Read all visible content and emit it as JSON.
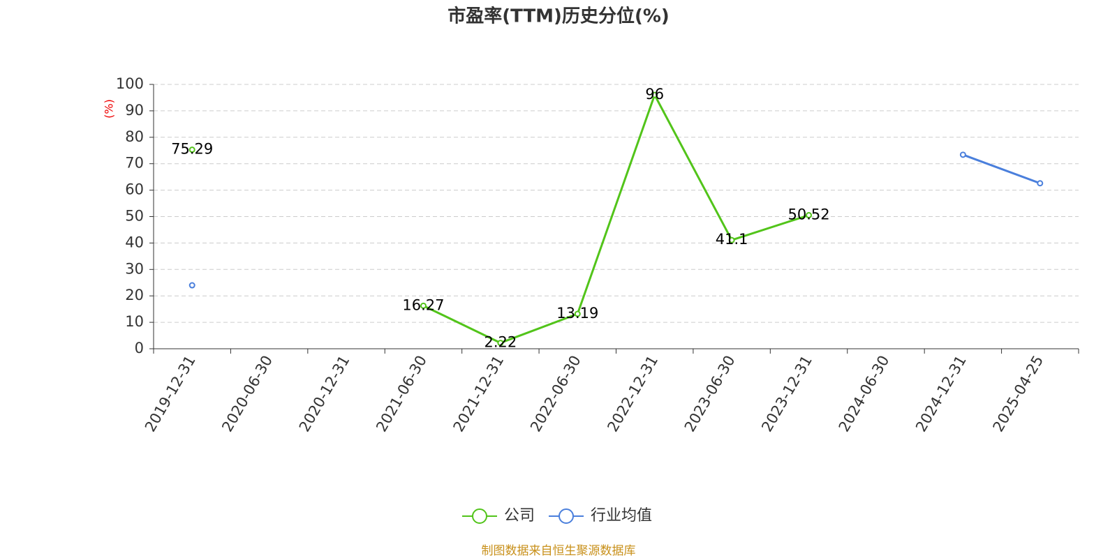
{
  "chart_data": {
    "type": "line",
    "title": "市盈率(TTM)历史分位(%)",
    "y_label": "(%)",
    "source": "制图数据来自恒生聚源数据库",
    "categories": [
      "2019-12-31",
      "2020-06-30",
      "2020-12-31",
      "2021-06-30",
      "2021-12-31",
      "2022-06-30",
      "2022-12-31",
      "2023-06-30",
      "2023-12-31",
      "2024-06-30",
      "2024-12-31",
      "2025-04-25"
    ],
    "series": [
      {
        "name": "公司",
        "color": "#52c41a",
        "values": [
          75.29,
          null,
          null,
          16.27,
          2.22,
          13.19,
          96,
          41.1,
          50.52,
          null,
          null,
          null
        ],
        "data_labels": true
      },
      {
        "name": "行业均值",
        "color": "#4a7fdc",
        "values": [
          24,
          null,
          null,
          null,
          null,
          null,
          null,
          null,
          null,
          null,
          73.4,
          62.6
        ],
        "data_labels": false
      }
    ],
    "ylim": [
      0,
      100
    ],
    "yticks": [
      0,
      10,
      20,
      30,
      40,
      50,
      60,
      70,
      80,
      90,
      100
    ],
    "grid": true,
    "legend": "bottom"
  }
}
